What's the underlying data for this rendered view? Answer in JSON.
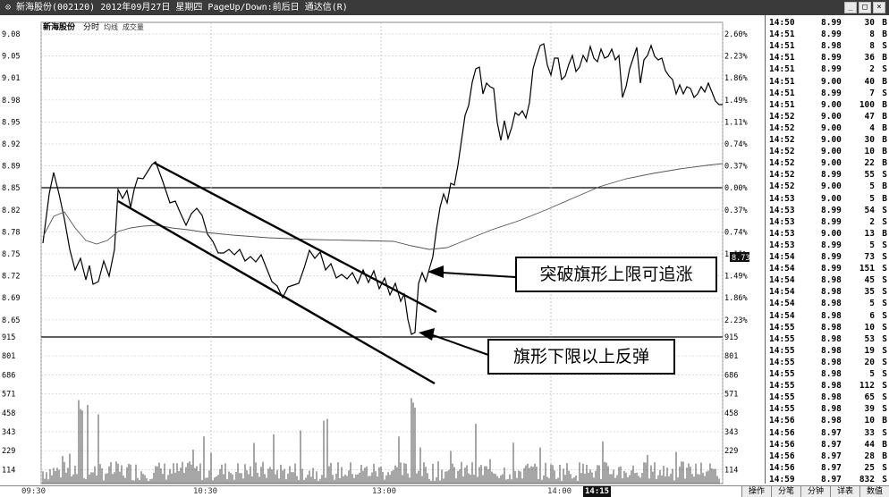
{
  "window": {
    "title": "⊙ 新海股份(002120) 2012年09月27日 星期四 PageUp/Down:前后日 通达信(R)",
    "controls": [
      "_",
      "□",
      "×"
    ]
  },
  "chart_header": {
    "stock_name": "新海股份",
    "mode": "分时",
    "legend": "均线 成交量"
  },
  "price_axis": [
    "9.08",
    "9.05",
    "9.01",
    "8.98",
    "8.95",
    "8.92",
    "8.89",
    "8.85",
    "8.82",
    "8.78",
    "8.75",
    "8.72",
    "8.69",
    "8.65"
  ],
  "pct_axis": [
    "2.60%",
    "2.23%",
    "1.86%",
    "1.49%",
    "1.11%",
    "0.74%",
    "0.37%",
    "0.00%",
    "0.37%",
    "0.74%",
    "1.11%",
    "1.49%",
    "1.86%",
    "2.23%"
  ],
  "volume_axis": [
    "915",
    "801",
    "686",
    "571",
    "458",
    "343",
    "229",
    "114"
  ],
  "current_price_tag": "8.73",
  "x_ticks": [
    "09:30",
    "10:30",
    "13:00",
    "14:00"
  ],
  "highlighted_time": "14:15",
  "annotations": {
    "breakout": "突破旗形上限可追涨",
    "rebound": "旗形下限以上反弹"
  },
  "trades": [
    {
      "time": "14:50",
      "price": "8.99",
      "vol": "30",
      "dir": "B"
    },
    {
      "time": "14:51",
      "price": "8.99",
      "vol": "8",
      "dir": "B"
    },
    {
      "time": "14:51",
      "price": "8.98",
      "vol": "8",
      "dir": "S"
    },
    {
      "time": "14:51",
      "price": "8.99",
      "vol": "36",
      "dir": "B"
    },
    {
      "time": "14:51",
      "price": "8.99",
      "vol": "2",
      "dir": "S"
    },
    {
      "time": "14:51",
      "price": "9.00",
      "vol": "40",
      "dir": "B"
    },
    {
      "time": "14:51",
      "price": "8.99",
      "vol": "7",
      "dir": "S"
    },
    {
      "time": "14:51",
      "price": "9.00",
      "vol": "100",
      "dir": "B"
    },
    {
      "time": "14:52",
      "price": "9.00",
      "vol": "47",
      "dir": "B"
    },
    {
      "time": "14:52",
      "price": "9.00",
      "vol": "4",
      "dir": "B"
    },
    {
      "time": "14:52",
      "price": "9.00",
      "vol": "30",
      "dir": "B"
    },
    {
      "time": "14:52",
      "price": "9.00",
      "vol": "10",
      "dir": "B"
    },
    {
      "time": "14:52",
      "price": "9.00",
      "vol": "22",
      "dir": "B"
    },
    {
      "time": "14:52",
      "price": "8.99",
      "vol": "55",
      "dir": "S"
    },
    {
      "time": "14:52",
      "price": "9.00",
      "vol": "5",
      "dir": "B"
    },
    {
      "time": "14:53",
      "price": "9.00",
      "vol": "5",
      "dir": "B"
    },
    {
      "time": "14:53",
      "price": "8.99",
      "vol": "54",
      "dir": "S"
    },
    {
      "time": "14:53",
      "price": "8.99",
      "vol": "2",
      "dir": "S"
    },
    {
      "time": "14:53",
      "price": "9.00",
      "vol": "13",
      "dir": "B"
    },
    {
      "time": "14:53",
      "price": "8.99",
      "vol": "5",
      "dir": "S"
    },
    {
      "time": "14:54",
      "price": "8.99",
      "vol": "73",
      "dir": "S"
    },
    {
      "time": "14:54",
      "price": "8.99",
      "vol": "151",
      "dir": "S"
    },
    {
      "time": "14:54",
      "price": "8.98",
      "vol": "45",
      "dir": "S"
    },
    {
      "time": "14:54",
      "price": "8.98",
      "vol": "35",
      "dir": "S"
    },
    {
      "time": "14:54",
      "price": "8.98",
      "vol": "5",
      "dir": "S"
    },
    {
      "time": "14:54",
      "price": "8.98",
      "vol": "6",
      "dir": "S"
    },
    {
      "time": "14:55",
      "price": "8.98",
      "vol": "10",
      "dir": "S"
    },
    {
      "time": "14:55",
      "price": "8.98",
      "vol": "53",
      "dir": "S"
    },
    {
      "time": "14:55",
      "price": "8.98",
      "vol": "19",
      "dir": "S"
    },
    {
      "time": "14:55",
      "price": "8.98",
      "vol": "20",
      "dir": "S"
    },
    {
      "time": "14:55",
      "price": "8.98",
      "vol": "5",
      "dir": "S"
    },
    {
      "time": "14:55",
      "price": "8.98",
      "vol": "112",
      "dir": "S"
    },
    {
      "time": "14:55",
      "price": "8.98",
      "vol": "65",
      "dir": "S"
    },
    {
      "time": "14:55",
      "price": "8.98",
      "vol": "39",
      "dir": "S"
    },
    {
      "time": "14:56",
      "price": "8.98",
      "vol": "10",
      "dir": "B"
    },
    {
      "time": "14:56",
      "price": "8.97",
      "vol": "33",
      "dir": "S"
    },
    {
      "time": "14:56",
      "price": "8.97",
      "vol": "44",
      "dir": "B"
    },
    {
      "time": "14:56",
      "price": "8.97",
      "vol": "28",
      "dir": "B"
    },
    {
      "time": "14:56",
      "price": "8.97",
      "vol": "25",
      "dir": "S"
    },
    {
      "time": "14:59",
      "price": "8.97",
      "vol": "832",
      "dir": "S"
    }
  ],
  "bottom_tabs": [
    "操作",
    "分笔",
    "分钟",
    "详表",
    "数值"
  ],
  "colors": {
    "price_line": "#000000",
    "avg_line": "#555555",
    "grid": "#cccccc",
    "highlight": "#111111"
  }
}
